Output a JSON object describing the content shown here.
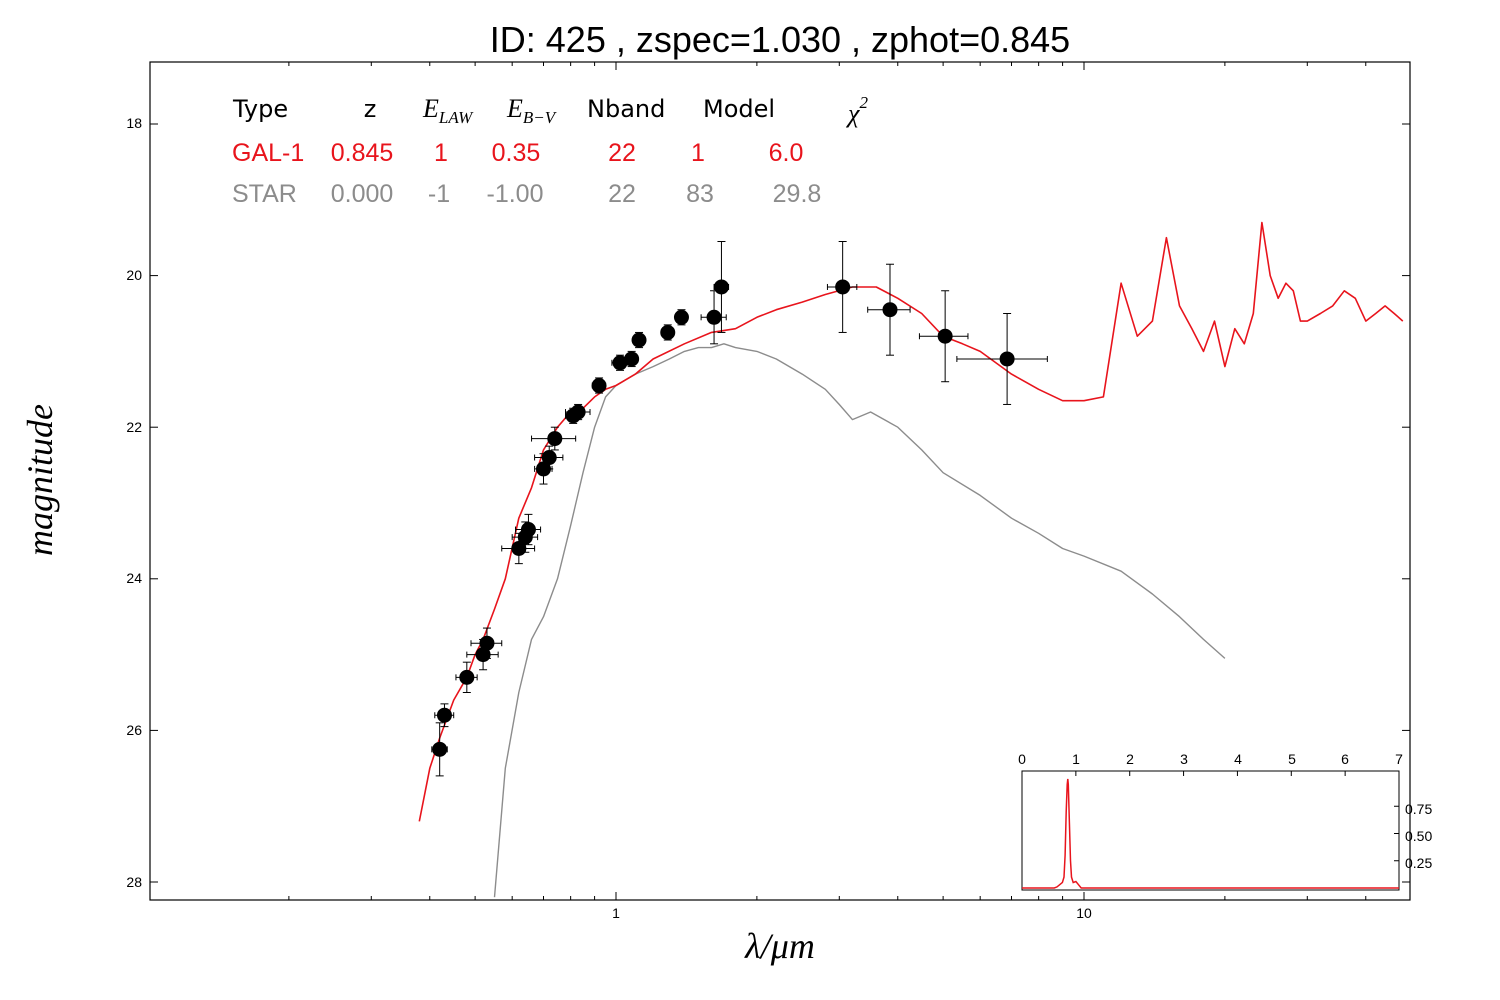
{
  "title": "ID:  425   , zspec=1.030 , zphot=0.845",
  "colors": {
    "galaxy": "#e8141c",
    "star": "#8c8c8c",
    "points": "#000000"
  },
  "table": {
    "headers": {
      "type": "Type",
      "z": "z",
      "elaw_main": "E",
      "elaw_sub": "LAW",
      "ebv_main": "E",
      "ebv_sub": "B−V",
      "nband": "Nband",
      "model": "Model",
      "chi_main": "χ",
      "chi_sup": "2"
    },
    "rows": [
      {
        "type": "GAL-1",
        "z": "0.845",
        "elaw": "1",
        "ebv": "0.35",
        "nband": "22",
        "model": "1",
        "chi2": "6.0",
        "color": "#e8141c"
      },
      {
        "type": "STAR",
        "z": "0.000",
        "elaw": "-1",
        "ebv": "-1.00",
        "nband": "22",
        "model": "83",
        "chi2": "29.8",
        "color": "#8c8c8c"
      }
    ]
  },
  "chart_data": [
    {
      "type": "line",
      "xlabel": "λ/μm",
      "ylabel": "magnitude",
      "x_scale": "log",
      "xlim": [
        0.2,
        70
      ],
      "ylim": [
        28.2,
        17.1
      ],
      "y_inverted": true,
      "x_tick_labels": [
        "1",
        "10"
      ],
      "y_tick_labels": [
        "18",
        "20",
        "22",
        "24",
        "26",
        "28"
      ],
      "series": [
        {
          "role": "galaxy-template",
          "color": "#e8141c",
          "x": [
            0.38,
            0.4,
            0.42,
            0.45,
            0.48,
            0.5,
            0.52,
            0.55,
            0.58,
            0.62,
            0.66,
            0.7,
            0.75,
            0.8,
            0.85,
            0.9,
            0.95,
            1.0,
            1.1,
            1.2,
            1.4,
            1.6,
            1.8,
            2.0,
            2.2,
            2.5,
            2.8,
            3.2,
            3.6,
            4.0,
            4.5,
            5.0,
            5.5,
            6.0,
            7.0,
            8.0,
            9.0,
            10.0,
            11.0,
            12.0,
            13.0,
            14.0,
            15.0,
            16.0,
            17.0,
            18.0,
            19.0,
            20.0,
            21.0,
            22.0,
            23.0,
            24.0,
            25.0,
            26.0,
            27.0,
            28.0,
            29.0,
            30.0,
            32.0,
            34.0,
            36.0,
            38.0,
            40.0,
            42.0,
            44.0,
            46.0,
            48.0
          ],
          "y": [
            27.2,
            26.5,
            26.1,
            25.6,
            25.3,
            25.0,
            24.8,
            24.4,
            24.0,
            23.2,
            22.8,
            22.3,
            22.0,
            21.8,
            21.75,
            21.6,
            21.5,
            21.45,
            21.3,
            21.1,
            20.9,
            20.75,
            20.7,
            20.55,
            20.45,
            20.35,
            20.25,
            20.15,
            20.15,
            20.3,
            20.5,
            20.8,
            20.9,
            21.0,
            21.3,
            21.5,
            21.65,
            21.65,
            21.6,
            20.1,
            20.8,
            20.6,
            19.5,
            20.4,
            20.7,
            21.0,
            20.6,
            21.2,
            20.7,
            20.9,
            20.5,
            19.3,
            20.0,
            20.3,
            20.1,
            20.2,
            20.6,
            20.6,
            20.5,
            20.4,
            20.2,
            20.3,
            20.6,
            20.5,
            20.4,
            20.5,
            20.6
          ]
        },
        {
          "role": "star-template",
          "color": "#8c8c8c",
          "x": [
            0.55,
            0.58,
            0.62,
            0.66,
            0.7,
            0.75,
            0.8,
            0.85,
            0.9,
            0.95,
            1.0,
            1.1,
            1.2,
            1.3,
            1.4,
            1.5,
            1.6,
            1.7,
            1.8,
            2.0,
            2.2,
            2.5,
            2.8,
            3.0,
            3.2,
            3.5,
            4.0,
            4.5,
            5.0,
            6.0,
            7.0,
            8.0,
            9.0,
            10.0,
            12.0,
            14.0,
            16.0,
            18.0,
            20.0
          ],
          "y": [
            28.2,
            26.5,
            25.5,
            24.8,
            24.5,
            24.0,
            23.3,
            22.6,
            22.0,
            21.6,
            21.45,
            21.3,
            21.2,
            21.1,
            21.0,
            20.95,
            20.95,
            20.9,
            20.95,
            21.0,
            21.1,
            21.3,
            21.5,
            21.7,
            21.9,
            21.8,
            22.0,
            22.3,
            22.6,
            22.9,
            23.2,
            23.4,
            23.6,
            23.7,
            23.9,
            24.2,
            24.5,
            24.8,
            25.05
          ]
        }
      ],
      "photometry": {
        "x": [
          0.42,
          0.43,
          0.48,
          0.52,
          0.53,
          0.62,
          0.64,
          0.65,
          0.7,
          0.72,
          0.74,
          0.81,
          0.83,
          0.92,
          1.02,
          1.08,
          1.12,
          1.29,
          1.38,
          1.62,
          1.68,
          3.05,
          3.85,
          5.05,
          6.85
        ],
        "y": [
          26.25,
          25.8,
          25.3,
          25.0,
          24.85,
          23.6,
          23.45,
          23.35,
          22.55,
          22.4,
          22.15,
          21.85,
          21.8,
          21.45,
          21.15,
          21.1,
          20.85,
          20.75,
          20.55,
          20.55,
          20.15,
          20.15,
          20.45,
          20.8,
          21.1
        ],
        "xerr_lo": [
          0.016,
          0.02,
          0.025,
          0.04,
          0.04,
          0.05,
          0.04,
          0.04,
          0.03,
          0.05,
          0.08,
          0.03,
          0.05,
          0.03,
          0.04,
          0.03,
          0.03,
          0.04,
          0.04,
          0.1,
          0.06,
          0.22,
          0.4,
          0.6,
          1.5
        ],
        "xerr_hi": [
          0.016,
          0.02,
          0.025,
          0.04,
          0.04,
          0.05,
          0.04,
          0.04,
          0.03,
          0.05,
          0.08,
          0.03,
          0.05,
          0.03,
          0.04,
          0.03,
          0.03,
          0.04,
          0.04,
          0.1,
          0.06,
          0.22,
          0.4,
          0.6,
          1.5
        ],
        "yerr": [
          0.35,
          0.15,
          0.2,
          0.2,
          0.2,
          0.2,
          0.2,
          0.2,
          0.2,
          0.15,
          0.15,
          0.1,
          0.1,
          0.1,
          0.1,
          0.1,
          0.1,
          0.1,
          0.1,
          0.35,
          0.6,
          0.6,
          0.6,
          0.6,
          0.6
        ]
      }
    },
    {
      "type": "line",
      "role": "inset-pdz",
      "xlim": [
        0,
        7
      ],
      "ylim": [
        0,
        1
      ],
      "x_tick_labels": [
        "0",
        "1",
        "2",
        "3",
        "4",
        "5",
        "6",
        "7"
      ],
      "y_tick_labels": [
        "0.25",
        "0.50",
        "0.75"
      ],
      "series": [
        {
          "color": "#e8141c",
          "x": [
            0,
            0.6,
            0.65,
            0.7,
            0.75,
            0.78,
            0.8,
            0.82,
            0.84,
            0.85,
            0.86,
            0.88,
            0.9,
            0.92,
            0.95,
            1.0,
            1.05,
            1.1,
            7.0
          ],
          "y": [
            0,
            0,
            0.01,
            0.03,
            0.05,
            0.1,
            0.3,
            0.7,
            0.95,
            1.0,
            0.95,
            0.6,
            0.25,
            0.1,
            0.05,
            0.06,
            0.03,
            0.0,
            0
          ]
        }
      ]
    }
  ]
}
